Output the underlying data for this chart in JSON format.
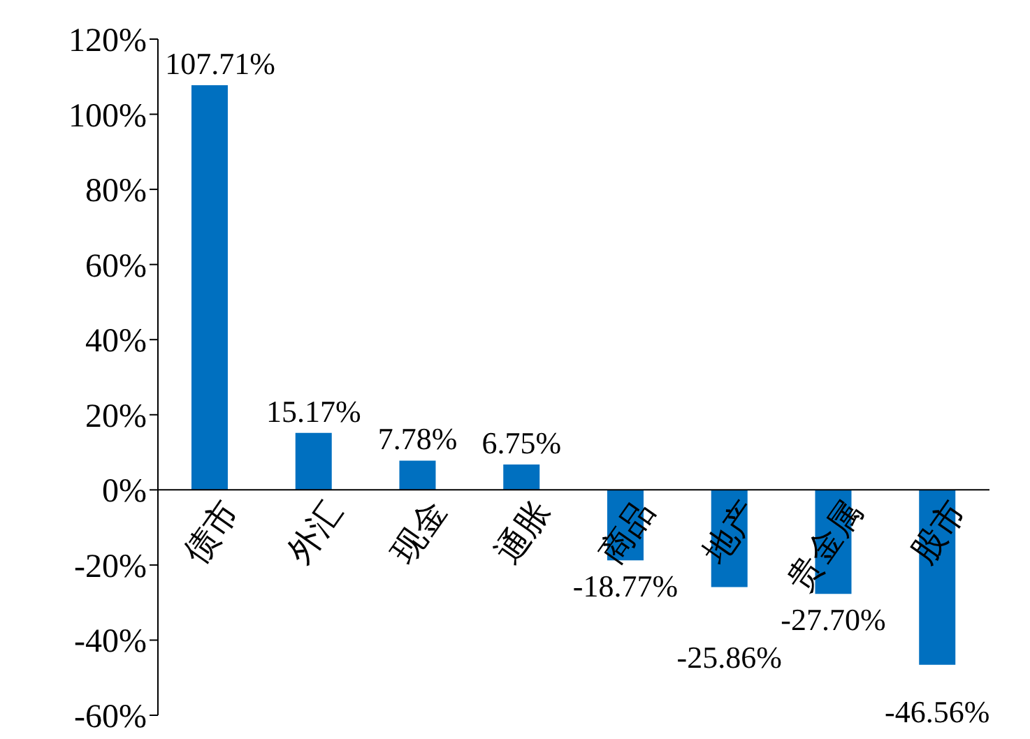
{
  "chart_data": {
    "type": "bar",
    "categories": [
      "债市",
      "外汇",
      "现金",
      "通胀",
      "商品",
      "地产",
      "贵金属",
      "股市"
    ],
    "values": [
      107.71,
      15.17,
      7.78,
      6.75,
      -18.77,
      -25.86,
      -27.7,
      -46.56
    ],
    "value_labels": [
      "107.71%",
      "15.17%",
      "7.78%",
      "6.75%",
      "-18.77%",
      "-25.86%",
      "-27.70%",
      "-46.56%"
    ],
    "color": "#0070c0",
    "ylim": [
      -60,
      120
    ],
    "yticks": [
      {
        "value": -60,
        "label": "-60%"
      },
      {
        "value": -40,
        "label": "-40%"
      },
      {
        "value": -20,
        "label": "-20%"
      },
      {
        "value": 0,
        "label": "0%"
      },
      {
        "value": 20,
        "label": "20%"
      },
      {
        "value": 40,
        "label": "40%"
      },
      {
        "value": 60,
        "label": "60%"
      },
      {
        "value": 80,
        "label": "80%"
      },
      {
        "value": 100,
        "label": "100%"
      },
      {
        "value": 120,
        "label": "120%"
      }
    ],
    "grid": false
  }
}
